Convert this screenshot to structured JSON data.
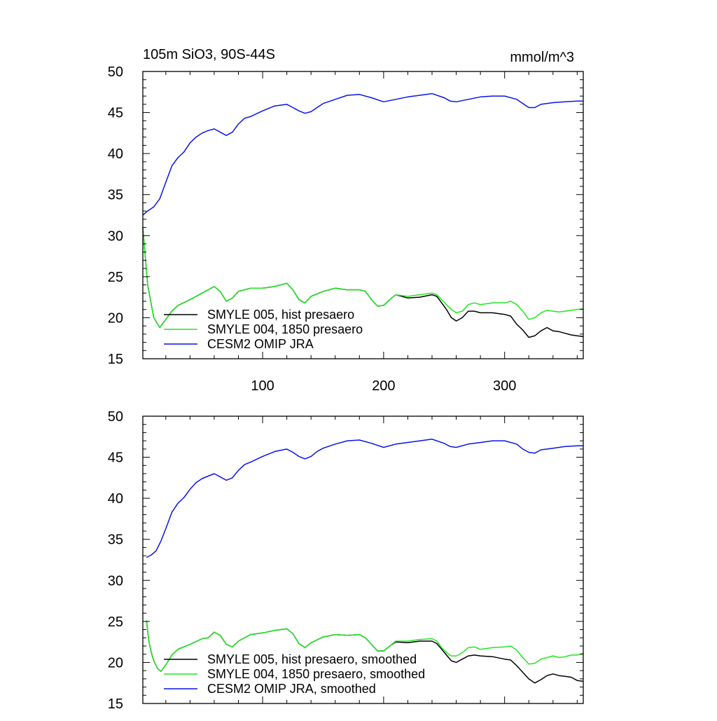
{
  "chart_data": [
    {
      "type": "line",
      "title_left": "105m SiO3, 90S-44S",
      "title_right": "mmol/m^3",
      "xlim": [
        1,
        365
      ],
      "ylim": [
        15,
        50
      ],
      "xticks": [
        100,
        200,
        300
      ],
      "xtick_labels": [
        "100",
        "200",
        "300"
      ],
      "yticks": [
        15,
        20,
        25,
        30,
        35,
        40,
        45,
        50
      ],
      "ytick_labels": [
        "15",
        "20",
        "25",
        "30",
        "35",
        "40",
        "45",
        "50"
      ],
      "grid": false,
      "legend_position": "bottom-left",
      "series": [
        {
          "name": "SMYLE 005, hist presaero",
          "color": "#000000",
          "x": [
            1,
            5,
            10,
            15,
            20,
            25,
            30,
            40,
            50,
            60,
            65,
            70,
            75,
            80,
            90,
            100,
            110,
            120,
            125,
            130,
            135,
            140,
            150,
            160,
            170,
            180,
            185,
            190,
            195,
            200,
            205,
            210,
            220,
            230,
            240,
            244,
            248,
            252,
            256,
            260,
            265,
            270,
            275,
            280,
            290,
            300,
            305,
            310,
            315,
            320,
            325,
            330,
            335,
            340,
            345,
            350,
            355,
            360,
            365
          ],
          "values": [
            31,
            24,
            20,
            18.8,
            19.8,
            20.8,
            21.5,
            22.2,
            23.0,
            23.8,
            23.2,
            22.0,
            22.4,
            23.2,
            23.6,
            23.6,
            23.8,
            24.2,
            23.4,
            22.2,
            21.8,
            22.6,
            23.2,
            23.6,
            23.4,
            23.4,
            23.2,
            22.2,
            21.4,
            21.5,
            22.2,
            22.8,
            22.4,
            22.5,
            22.8,
            22.6,
            21.8,
            21.0,
            20.0,
            19.6,
            20.0,
            20.8,
            20.8,
            20.6,
            20.6,
            20.4,
            20.2,
            19.2,
            18.5,
            17.6,
            17.8,
            18.4,
            18.8,
            18.4,
            18.3,
            18.1,
            17.9,
            17.8,
            17.7
          ]
        },
        {
          "name": "SMYLE 004, 1850 presaero",
          "color": "#22e622",
          "x": [
            1,
            5,
            10,
            15,
            20,
            25,
            30,
            40,
            50,
            60,
            65,
            70,
            75,
            80,
            90,
            100,
            110,
            120,
            125,
            130,
            135,
            140,
            150,
            160,
            170,
            180,
            185,
            190,
            195,
            200,
            205,
            210,
            220,
            230,
            240,
            244,
            248,
            252,
            256,
            260,
            265,
            270,
            275,
            280,
            290,
            300,
            305,
            310,
            315,
            320,
            325,
            330,
            335,
            340,
            345,
            350,
            355,
            360,
            365
          ],
          "values": [
            31,
            24,
            20,
            18.8,
            19.8,
            20.8,
            21.5,
            22.2,
            23.0,
            23.8,
            23.2,
            22.0,
            22.4,
            23.2,
            23.6,
            23.6,
            23.8,
            24.2,
            23.4,
            22.2,
            21.8,
            22.6,
            23.2,
            23.6,
            23.4,
            23.4,
            23.2,
            22.2,
            21.4,
            21.5,
            22.2,
            22.8,
            22.6,
            22.8,
            23.0,
            22.8,
            22.2,
            21.6,
            21.0,
            20.6,
            20.8,
            21.6,
            21.8,
            21.6,
            21.8,
            21.8,
            22.0,
            21.6,
            20.8,
            19.8,
            20.0,
            20.6,
            20.9,
            20.8,
            20.7,
            20.8,
            20.9,
            21.0,
            21.1
          ]
        },
        {
          "name": "CESM2 OMIP JRA",
          "color": "#0a14e6",
          "x": [
            1,
            5,
            10,
            15,
            20,
            25,
            30,
            35,
            40,
            45,
            50,
            55,
            60,
            65,
            70,
            75,
            80,
            85,
            90,
            100,
            110,
            120,
            125,
            130,
            135,
            140,
            145,
            150,
            160,
            170,
            180,
            190,
            200,
            210,
            220,
            230,
            240,
            250,
            255,
            260,
            270,
            280,
            290,
            300,
            310,
            315,
            320,
            325,
            330,
            340,
            350,
            360,
            365
          ],
          "values": [
            32.5,
            33.0,
            33.5,
            34.5,
            36.5,
            38.5,
            39.5,
            40.2,
            41.3,
            42.0,
            42.5,
            42.8,
            43.0,
            42.6,
            42.2,
            42.6,
            43.6,
            44.3,
            44.5,
            45.2,
            45.8,
            46.0,
            45.6,
            45.2,
            44.9,
            45.1,
            45.6,
            46.1,
            46.6,
            47.1,
            47.2,
            46.8,
            46.3,
            46.6,
            46.9,
            47.1,
            47.3,
            46.8,
            46.4,
            46.3,
            46.6,
            46.9,
            47.0,
            47.0,
            46.6,
            46.1,
            45.6,
            45.6,
            46.0,
            46.2,
            46.3,
            46.4,
            46.4
          ]
        }
      ]
    },
    {
      "type": "line",
      "xlim": [
        1,
        365
      ],
      "ylim": [
        15,
        50
      ],
      "xticks": [
        100,
        200,
        300
      ],
      "yticks": [
        15,
        20,
        25,
        30,
        35,
        40,
        45,
        50
      ],
      "ytick_labels": [
        "15",
        "20",
        "25",
        "30",
        "35",
        "40",
        "45",
        "50"
      ],
      "grid": false,
      "legend_position": "bottom-left",
      "series": [
        {
          "name": "SMYLE 005, hist presaero, smoothed",
          "color": "#000000",
          "x": [
            4,
            6,
            8,
            10,
            13,
            16,
            20,
            25,
            30,
            40,
            50,
            55,
            60,
            65,
            70,
            75,
            80,
            90,
            100,
            110,
            120,
            125,
            130,
            135,
            140,
            150,
            160,
            170,
            180,
            185,
            190,
            195,
            200,
            205,
            210,
            220,
            230,
            240,
            244,
            248,
            252,
            256,
            260,
            265,
            270,
            275,
            280,
            290,
            300,
            305,
            310,
            315,
            320,
            325,
            330,
            335,
            340,
            345,
            350,
            355,
            360,
            365
          ],
          "values": [
            25.1,
            22.6,
            21.2,
            20.2,
            19.3,
            18.9,
            19.7,
            20.9,
            21.6,
            22.2,
            22.9,
            23.0,
            23.7,
            23.3,
            22.2,
            21.9,
            22.6,
            23.4,
            23.6,
            23.9,
            24.1,
            23.5,
            22.3,
            21.8,
            22.4,
            23.1,
            23.4,
            23.3,
            23.4,
            23.0,
            22.2,
            21.4,
            21.4,
            22.0,
            22.5,
            22.4,
            22.6,
            22.6,
            22.3,
            21.6,
            20.9,
            20.2,
            20.0,
            20.4,
            20.8,
            20.9,
            20.8,
            20.7,
            20.4,
            20.3,
            19.6,
            18.8,
            18.0,
            17.5,
            17.9,
            18.4,
            18.6,
            18.4,
            18.3,
            18.2,
            17.8,
            17.7
          ]
        },
        {
          "name": "SMYLE 004, 1850 presaero, smoothed",
          "color": "#22e622",
          "x": [
            4,
            6,
            8,
            10,
            13,
            16,
            20,
            25,
            30,
            40,
            50,
            55,
            60,
            65,
            70,
            75,
            80,
            90,
            100,
            110,
            120,
            125,
            130,
            135,
            140,
            150,
            160,
            170,
            180,
            185,
            190,
            195,
            200,
            205,
            210,
            220,
            230,
            240,
            244,
            248,
            252,
            256,
            260,
            265,
            270,
            275,
            280,
            290,
            300,
            305,
            310,
            315,
            320,
            325,
            330,
            335,
            340,
            345,
            350,
            355,
            360,
            365
          ],
          "values": [
            25.1,
            22.6,
            21.2,
            20.2,
            19.3,
            18.9,
            19.7,
            20.9,
            21.6,
            22.2,
            22.9,
            23.0,
            23.7,
            23.3,
            22.2,
            21.9,
            22.6,
            23.4,
            23.6,
            23.9,
            24.1,
            23.5,
            22.3,
            21.8,
            22.4,
            23.1,
            23.4,
            23.3,
            23.4,
            23.0,
            22.2,
            21.4,
            21.4,
            22.0,
            22.6,
            22.6,
            22.8,
            22.9,
            22.6,
            21.8,
            21.2,
            20.8,
            20.8,
            21.2,
            21.8,
            21.9,
            21.6,
            21.8,
            21.9,
            22.0,
            21.5,
            20.6,
            19.8,
            19.9,
            20.4,
            20.6,
            20.8,
            20.6,
            20.7,
            20.9,
            20.9,
            21.1
          ]
        },
        {
          "name": "CESM2 OMIP JRA, smoothed",
          "color": "#0a14e6",
          "x": [
            4,
            8,
            12,
            16,
            20,
            25,
            30,
            35,
            40,
            45,
            50,
            55,
            60,
            65,
            70,
            75,
            80,
            85,
            90,
            100,
            110,
            120,
            125,
            130,
            135,
            140,
            145,
            150,
            160,
            170,
            180,
            190,
            200,
            210,
            220,
            230,
            240,
            250,
            255,
            260,
            270,
            280,
            290,
            300,
            310,
            315,
            320,
            325,
            330,
            340,
            350,
            360,
            365
          ],
          "values": [
            32.8,
            33.1,
            33.6,
            34.8,
            36.3,
            38.3,
            39.4,
            40.1,
            41.1,
            41.9,
            42.4,
            42.7,
            43.0,
            42.6,
            42.2,
            42.5,
            43.4,
            44.1,
            44.4,
            45.1,
            45.7,
            46.0,
            45.6,
            45.1,
            44.8,
            45.1,
            45.7,
            46.1,
            46.6,
            47.0,
            47.1,
            46.7,
            46.2,
            46.6,
            46.8,
            47.0,
            47.2,
            46.7,
            46.3,
            46.2,
            46.6,
            46.8,
            47.0,
            47.0,
            46.6,
            46.0,
            45.6,
            45.5,
            45.9,
            46.1,
            46.3,
            46.4,
            46.4
          ]
        }
      ]
    }
  ]
}
